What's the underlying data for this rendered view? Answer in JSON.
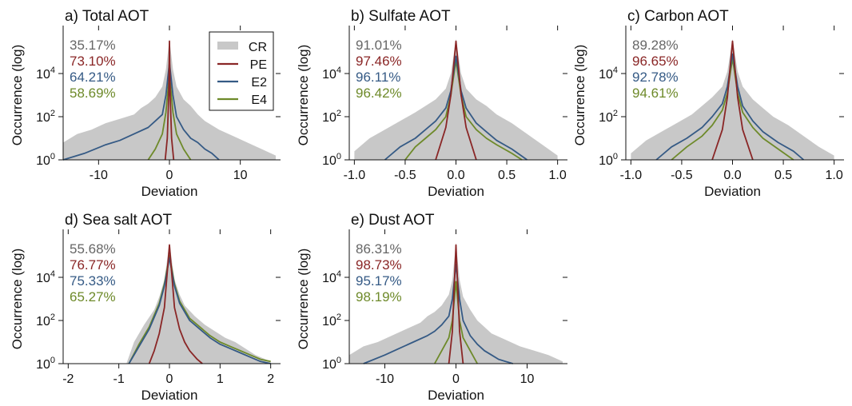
{
  "figure": {
    "ylabel": "Occurrence (log)",
    "xlabel": "Deviation",
    "y_tick_labels": [
      {
        "base": "10",
        "exp": "0"
      },
      {
        "base": "10",
        "exp": "2"
      },
      {
        "base": "10",
        "exp": "4"
      }
    ]
  },
  "legend": {
    "placement": "panel-a-top-right",
    "entries": [
      {
        "key": "CR",
        "label": "CR",
        "style": "band"
      },
      {
        "key": "PE",
        "label": "PE",
        "style": "line"
      },
      {
        "key": "E2",
        "label": "E2",
        "style": "line"
      },
      {
        "key": "E4",
        "label": "E4",
        "style": "line"
      }
    ]
  },
  "colors": {
    "CR": "#c8c8c8",
    "PE": "#8a2626",
    "E2": "#355a85",
    "E4": "#6e8a2a",
    "CR_text": "#666666"
  },
  "chart_data": [
    {
      "id": "a",
      "type": "line",
      "title": "a) Total AOT",
      "xlabel": "Deviation",
      "ylabel": "Occurrence (log)",
      "y_scale": "log",
      "xlim": [
        -15,
        15
      ],
      "ylim_log10": [
        0,
        6
      ],
      "x_ticks": [
        -10,
        0,
        10
      ],
      "x_tick_labels": [
        "-10",
        "0",
        "10"
      ],
      "percentages": [
        {
          "series": "CR",
          "text": "35.17%"
        },
        {
          "series": "PE",
          "text": "73.10%"
        },
        {
          "series": "E2",
          "text": "64.21%"
        },
        {
          "series": "E4",
          "text": "58.69%"
        }
      ],
      "series": {
        "CR": {
          "x": [
            -15,
            -13,
            -11,
            -9,
            -7,
            -5,
            -4,
            -3,
            -2,
            -1,
            -0.5,
            0,
            0.5,
            1,
            2,
            3,
            4,
            5,
            7,
            9,
            11,
            13,
            15
          ],
          "y_log10": [
            0.8,
            1.2,
            1.4,
            1.7,
            1.9,
            2.1,
            2.4,
            2.6,
            2.9,
            3.4,
            4.2,
            5.6,
            4.2,
            3.4,
            2.8,
            2.5,
            2.1,
            1.8,
            1.4,
            1.1,
            0.8,
            0.5,
            0.2
          ]
        },
        "PE": {
          "x": [
            -0.6,
            -0.3,
            -0.1,
            0,
            0.1,
            0.3,
            0.6
          ],
          "y_log10": [
            0.0,
            1.0,
            3.0,
            5.5,
            3.0,
            1.0,
            0.0
          ]
        },
        "E2": {
          "x": [
            -15,
            -12,
            -9,
            -7,
            -5,
            -3,
            -2,
            -1,
            -0.5,
            0,
            0.5,
            1,
            2,
            3,
            4,
            5,
            6,
            7
          ],
          "y_log10": [
            0.0,
            0.3,
            0.7,
            0.9,
            1.2,
            1.5,
            1.8,
            2.1,
            3.0,
            4.5,
            3.0,
            2.0,
            1.4,
            1.0,
            0.8,
            0.5,
            0.3,
            0.0
          ]
        },
        "E4": {
          "x": [
            -3,
            -2,
            -1,
            -0.5,
            0,
            0.5,
            1,
            2,
            3
          ],
          "y_log10": [
            0.0,
            0.5,
            1.2,
            2.2,
            4.0,
            2.2,
            1.2,
            0.5,
            0.0
          ]
        }
      }
    },
    {
      "id": "b",
      "type": "line",
      "title": "b) Sulfate AOT",
      "xlabel": "Deviation",
      "ylabel": "Occurrence (log)",
      "y_scale": "log",
      "xlim": [
        -1.05,
        1.05
      ],
      "ylim_log10": [
        0,
        6
      ],
      "x_ticks": [
        -1.0,
        -0.5,
        0,
        0.5,
        1.0
      ],
      "x_tick_labels": [
        "-1.0",
        "-0.5",
        "0.0",
        "0.5",
        "1.0"
      ],
      "percentages": [
        {
          "series": "CR",
          "text": "91.01%"
        },
        {
          "series": "PE",
          "text": "97.46%"
        },
        {
          "series": "E2",
          "text": "96.11%"
        },
        {
          "series": "E4",
          "text": "96.42%"
        }
      ],
      "series": {
        "CR": {
          "x": [
            -1.0,
            -0.85,
            -0.7,
            -0.55,
            -0.4,
            -0.3,
            -0.2,
            -0.1,
            -0.05,
            0,
            0.05,
            0.1,
            0.2,
            0.3,
            0.4,
            0.55,
            0.7,
            0.85,
            1.0
          ],
          "y_log10": [
            0.4,
            1.0,
            1.4,
            1.8,
            2.2,
            2.5,
            2.8,
            3.3,
            4.0,
            5.6,
            4.0,
            3.3,
            2.8,
            2.5,
            2.1,
            1.7,
            1.2,
            0.7,
            0.2
          ]
        },
        "PE": {
          "x": [
            -0.2,
            -0.1,
            -0.05,
            0,
            0.05,
            0.1,
            0.2
          ],
          "y_log10": [
            0.0,
            1.5,
            3.0,
            5.5,
            3.0,
            1.5,
            0.0
          ]
        },
        "E2": {
          "x": [
            -0.7,
            -0.55,
            -0.4,
            -0.3,
            -0.2,
            -0.1,
            -0.05,
            0,
            0.05,
            0.1,
            0.2,
            0.3,
            0.4,
            0.55,
            0.7
          ],
          "y_log10": [
            0.0,
            0.6,
            1.0,
            1.4,
            1.8,
            2.4,
            3.2,
            4.8,
            3.2,
            2.4,
            1.7,
            1.3,
            0.9,
            0.5,
            0.0
          ]
        },
        "E4": {
          "x": [
            -0.5,
            -0.4,
            -0.3,
            -0.2,
            -0.1,
            -0.05,
            0,
            0.05,
            0.1,
            0.2,
            0.3,
            0.4,
            0.55,
            0.65
          ],
          "y_log10": [
            0.0,
            0.6,
            1.0,
            1.4,
            2.0,
            3.0,
            4.6,
            3.0,
            2.0,
            1.4,
            1.0,
            0.7,
            0.3,
            0.0
          ]
        }
      }
    },
    {
      "id": "c",
      "type": "line",
      "title": "c) Carbon AOT",
      "xlabel": "Deviation",
      "ylabel": "Occurrence (log)",
      "y_scale": "log",
      "xlim": [
        -1.05,
        1.05
      ],
      "ylim_log10": [
        0,
        6
      ],
      "x_ticks": [
        -1.0,
        -0.5,
        0,
        0.5,
        1.0
      ],
      "x_tick_labels": [
        "-1.0",
        "-0.5",
        "0.0",
        "0.5",
        "1.0"
      ],
      "percentages": [
        {
          "series": "CR",
          "text": "89.28%"
        },
        {
          "series": "PE",
          "text": "96.65%"
        },
        {
          "series": "E2",
          "text": "92.78%"
        },
        {
          "series": "E4",
          "text": "94.61%"
        }
      ],
      "series": {
        "CR": {
          "x": [
            -1.0,
            -0.85,
            -0.7,
            -0.55,
            -0.4,
            -0.3,
            -0.2,
            -0.1,
            -0.05,
            0,
            0.05,
            0.1,
            0.2,
            0.3,
            0.4,
            0.55,
            0.7,
            0.85,
            1.0
          ],
          "y_log10": [
            0.3,
            0.9,
            1.3,
            1.7,
            2.1,
            2.5,
            2.9,
            3.4,
            4.1,
            5.6,
            4.1,
            3.4,
            2.8,
            2.4,
            2.0,
            1.6,
            1.1,
            0.6,
            0.2
          ]
        },
        "PE": {
          "x": [
            -0.2,
            -0.1,
            -0.05,
            0,
            0.05,
            0.1,
            0.2
          ],
          "y_log10": [
            0.0,
            1.4,
            2.9,
            5.5,
            2.9,
            1.4,
            0.0
          ]
        },
        "E2": {
          "x": [
            -0.75,
            -0.6,
            -0.45,
            -0.3,
            -0.2,
            -0.1,
            -0.05,
            0,
            0.05,
            0.1,
            0.2,
            0.3,
            0.45,
            0.6,
            0.7
          ],
          "y_log10": [
            0.0,
            0.6,
            1.0,
            1.5,
            2.0,
            2.6,
            3.4,
            4.9,
            3.4,
            2.5,
            1.8,
            1.3,
            0.8,
            0.4,
            0.0
          ]
        },
        "E4": {
          "x": [
            -0.6,
            -0.45,
            -0.3,
            -0.2,
            -0.1,
            -0.05,
            0,
            0.05,
            0.1,
            0.2,
            0.3,
            0.45,
            0.6
          ],
          "y_log10": [
            0.0,
            0.6,
            1.1,
            1.6,
            2.3,
            3.1,
            4.7,
            3.1,
            2.2,
            1.5,
            1.0,
            0.5,
            0.0
          ]
        }
      }
    },
    {
      "id": "d",
      "type": "line",
      "title": "d) Sea salt AOT",
      "xlabel": "Deviation",
      "ylabel": "Occurrence (log)",
      "y_scale": "log",
      "xlim": [
        -2.1,
        2.1
      ],
      "ylim_log10": [
        0,
        6
      ],
      "x_ticks": [
        -2,
        -1,
        0,
        1,
        2
      ],
      "x_tick_labels": [
        "-2",
        "-1",
        "0",
        "1",
        "2"
      ],
      "percentages": [
        {
          "series": "CR",
          "text": "55.68%"
        },
        {
          "series": "PE",
          "text": "76.77%"
        },
        {
          "series": "E2",
          "text": "75.33%"
        },
        {
          "series": "E4",
          "text": "65.27%"
        }
      ],
      "series": {
        "CR": {
          "x": [
            -0.85,
            -0.7,
            -0.5,
            -0.3,
            -0.2,
            -0.1,
            0,
            0.1,
            0.2,
            0.3,
            0.5,
            0.7,
            0.9,
            1.1,
            1.3,
            1.5,
            1.7,
            2.0
          ],
          "y_log10": [
            0.0,
            1.0,
            1.8,
            2.5,
            3.1,
            3.9,
            5.6,
            3.9,
            3.2,
            2.7,
            2.2,
            1.8,
            1.5,
            1.2,
            1.0,
            0.7,
            0.4,
            0.1
          ]
        },
        "PE": {
          "x": [
            -0.4,
            -0.3,
            -0.2,
            -0.1,
            0,
            0.1,
            0.2,
            0.3,
            0.4,
            0.55,
            0.65
          ],
          "y_log10": [
            0.0,
            0.6,
            1.4,
            2.6,
            5.5,
            2.6,
            1.6,
            1.0,
            0.6,
            0.2,
            0.0
          ]
        },
        "E2": {
          "x": [
            -0.8,
            -0.6,
            -0.4,
            -0.2,
            -0.1,
            0,
            0.1,
            0.2,
            0.4,
            0.6,
            0.8,
            1.0,
            1.2,
            1.4,
            1.6,
            1.8,
            2.0
          ],
          "y_log10": [
            0.0,
            0.8,
            1.6,
            2.7,
            3.6,
            4.9,
            3.6,
            2.8,
            2.0,
            1.6,
            1.2,
            0.9,
            0.7,
            0.5,
            0.3,
            0.1,
            0.0
          ]
        },
        "E4": {
          "x": [
            -0.8,
            -0.6,
            -0.4,
            -0.2,
            -0.1,
            0,
            0.1,
            0.2,
            0.4,
            0.6,
            0.8,
            1.0,
            1.2,
            1.4,
            1.6,
            1.8,
            2.0
          ],
          "y_log10": [
            0.0,
            0.9,
            1.7,
            2.8,
            3.7,
            5.0,
            3.7,
            2.9,
            2.1,
            1.7,
            1.3,
            1.0,
            0.8,
            0.6,
            0.4,
            0.2,
            0.1
          ]
        }
      }
    },
    {
      "id": "e",
      "type": "line",
      "title": "e) Dust AOT",
      "xlabel": "Deviation",
      "ylabel": "Occurrence (log)",
      "y_scale": "log",
      "xlim": [
        -15,
        15
      ],
      "ylim_log10": [
        0,
        6
      ],
      "x_ticks": [
        -10,
        0,
        10
      ],
      "x_tick_labels": [
        "-10",
        "0",
        "10"
      ],
      "percentages": [
        {
          "series": "CR",
          "text": "86.31%"
        },
        {
          "series": "PE",
          "text": "98.73%"
        },
        {
          "series": "E2",
          "text": "95.17%"
        },
        {
          "series": "E4",
          "text": "98.19%"
        }
      ],
      "series": {
        "CR": {
          "x": [
            -15,
            -13,
            -11,
            -9,
            -7,
            -5,
            -4,
            -3,
            -2,
            -1,
            -0.5,
            0,
            0.5,
            1,
            2,
            3,
            4,
            5,
            7,
            9,
            11,
            13,
            15
          ],
          "y_log10": [
            0.4,
            0.8,
            1.0,
            1.3,
            1.6,
            1.9,
            2.2,
            2.4,
            2.7,
            3.2,
            3.9,
            5.6,
            3.9,
            3.1,
            2.5,
            2.0,
            1.7,
            1.4,
            1.1,
            0.8,
            0.6,
            0.4,
            0.1
          ]
        },
        "PE": {
          "x": [
            -1.0,
            -0.5,
            0,
            0.5,
            1.0
          ],
          "y_log10": [
            0.0,
            1.5,
            5.5,
            1.5,
            0.0
          ]
        },
        "E2": {
          "x": [
            -13,
            -10,
            -8,
            -6,
            -4,
            -3,
            -2,
            -1,
            -0.5,
            0,
            0.5,
            1,
            2,
            3,
            4,
            5,
            6,
            8
          ],
          "y_log10": [
            0.0,
            0.4,
            0.7,
            1.0,
            1.3,
            1.5,
            1.8,
            2.2,
            3.0,
            4.6,
            3.0,
            2.0,
            1.3,
            0.9,
            0.6,
            0.4,
            0.2,
            0.0
          ]
        },
        "E4": {
          "x": [
            -3,
            -2,
            -1,
            -0.5,
            0,
            0.5,
            1,
            2,
            3
          ],
          "y_log10": [
            0.0,
            0.6,
            1.2,
            2.0,
            3.8,
            2.0,
            1.2,
            0.6,
            0.0
          ]
        }
      }
    }
  ]
}
